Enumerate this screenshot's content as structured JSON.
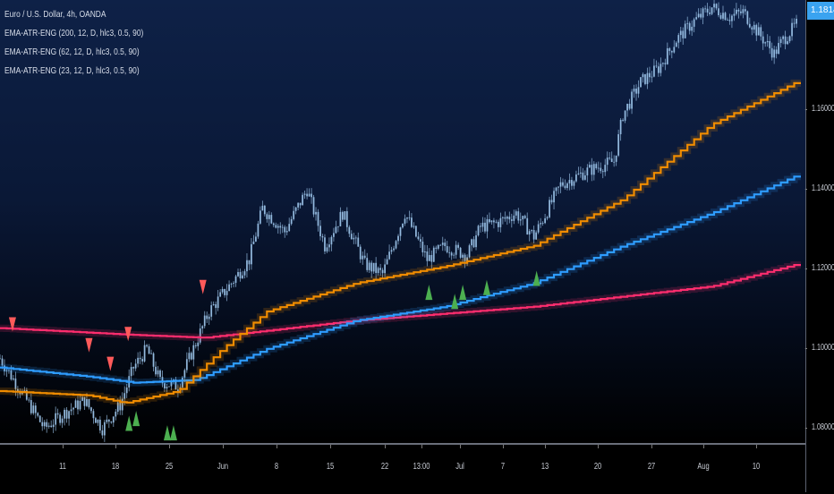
{
  "legend": {
    "symbol": "Euro / U.S. Dollar, 4h, OANDA",
    "indicators": [
      "EMA-ATR-ENG (200, 12, D, hlc3, 0.5, 90)",
      "EMA-ATR-ENG (62, 12, D, hlc3, 0.5, 90)",
      "EMA-ATR-ENG (23, 12, D, hlc3, 0.5, 90)"
    ]
  },
  "colors": {
    "candle": "#9cc4ea",
    "ema200": "#ff2d6e",
    "ema62": "#2e9cff",
    "ema23": "#f08c00",
    "arrow_down": "#ff5a5a",
    "arrow_up": "#4caf50",
    "last_price_bg": "#3aa3f0"
  },
  "chart_data": {
    "type": "line",
    "title": "Euro / U.S. Dollar, 4h, OANDA",
    "ylim": [
      1.064,
      1.1876
    ],
    "xlim": [
      0,
      180
    ],
    "price_ticks": [
      "1.16000",
      "1.14000",
      "1.12000",
      "1.10000",
      "1.08000"
    ],
    "price_tick_values": [
      1.16,
      1.14,
      1.12,
      1.1,
      1.08
    ],
    "last_price": "1.18141",
    "time_ticks": [
      {
        "label": "11",
        "bar": 14
      },
      {
        "label": "18",
        "bar": 26
      },
      {
        "label": "25",
        "bar": 38
      },
      {
        "label": "Jun",
        "bar": 50
      },
      {
        "label": "8",
        "bar": 62.2
      },
      {
        "label": "15",
        "bar": 74.2
      },
      {
        "label": "22",
        "bar": 86.4
      },
      {
        "label": "13:00",
        "bar": 94.8
      },
      {
        "label": "Jul",
        "bar": 103.4
      },
      {
        "label": "7",
        "bar": 113
      },
      {
        "label": "13",
        "bar": 122.4
      },
      {
        "label": "20",
        "bar": 134.4
      },
      {
        "label": "27",
        "bar": 146.4
      },
      {
        "label": "Aug",
        "bar": 158
      },
      {
        "label": "10",
        "bar": 170
      }
    ],
    "price_path": [
      [
        0,
        1.0976
      ],
      [
        4,
        1.0906
      ],
      [
        10,
        1.08
      ],
      [
        14,
        1.0835
      ],
      [
        19,
        1.0871
      ],
      [
        23,
        1.08
      ],
      [
        27,
        1.0859
      ],
      [
        30,
        1.0953
      ],
      [
        33,
        1.1
      ],
      [
        36,
        1.0918
      ],
      [
        40,
        1.0906
      ],
      [
        43,
        1.0988
      ],
      [
        47,
        1.1094
      ],
      [
        52,
        1.1165
      ],
      [
        56,
        1.1224
      ],
      [
        59,
        1.1353
      ],
      [
        64,
        1.1294
      ],
      [
        69,
        1.14
      ],
      [
        73,
        1.1259
      ],
      [
        77,
        1.1341
      ],
      [
        82,
        1.1212
      ],
      [
        86,
        1.1188
      ],
      [
        91,
        1.1341
      ],
      [
        96,
        1.1224
      ],
      [
        100,
        1.1259
      ],
      [
        105,
        1.1235
      ],
      [
        108,
        1.1306
      ],
      [
        112,
        1.1318
      ],
      [
        116,
        1.1341
      ],
      [
        120,
        1.1282
      ],
      [
        126,
        1.1412
      ],
      [
        132,
        1.1447
      ],
      [
        138,
        1.1471
      ],
      [
        140,
        1.1588
      ],
      [
        144,
        1.167
      ],
      [
        148,
        1.1705
      ],
      [
        152,
        1.1776
      ],
      [
        156,
        1.1823
      ],
      [
        160,
        1.1858
      ],
      [
        164,
        1.1834
      ],
      [
        167,
        1.1846
      ],
      [
        170,
        1.18
      ],
      [
        174,
        1.1741
      ],
      [
        176,
        1.1776
      ],
      [
        179,
        1.1814
      ]
    ],
    "series": [
      {
        "name": "EMA-ATR-ENG 200",
        "color_key": "ema200",
        "points": [
          [
            0,
            1.1052
          ],
          [
            30,
            1.1035
          ],
          [
            46,
            1.1028
          ],
          [
            80,
            1.1071
          ],
          [
            120,
            1.1106
          ],
          [
            160,
            1.1157
          ],
          [
            179,
            1.1212
          ]
        ]
      },
      {
        "name": "EMA-ATR-ENG 62",
        "color_key": "ema62",
        "points": [
          [
            0,
            1.0953
          ],
          [
            20,
            1.093
          ],
          [
            30,
            1.0915
          ],
          [
            44,
            1.0922
          ],
          [
            60,
            1.1
          ],
          [
            80,
            1.1071
          ],
          [
            100,
            1.1106
          ],
          [
            120,
            1.1165
          ],
          [
            140,
            1.1259
          ],
          [
            160,
            1.1341
          ],
          [
            179,
            1.1435
          ]
        ]
      },
      {
        "name": "EMA-ATR-ENG 23",
        "color_key": "ema23",
        "points": [
          [
            0,
            1.0894
          ],
          [
            20,
            1.0883
          ],
          [
            28,
            1.0864
          ],
          [
            40,
            1.0894
          ],
          [
            50,
            1.1
          ],
          [
            60,
            1.1094
          ],
          [
            80,
            1.1165
          ],
          [
            100,
            1.1207
          ],
          [
            120,
            1.1259
          ],
          [
            140,
            1.1376
          ],
          [
            160,
            1.1564
          ],
          [
            179,
            1.167
          ]
        ]
      }
    ],
    "signals_down": [
      [
        2.8,
        1.1059
      ],
      [
        20,
        1.1007
      ],
      [
        24.8,
        1.096
      ],
      [
        28.8,
        1.1035
      ],
      [
        45.6,
        1.1153
      ]
    ],
    "signals_up": [
      [
        19.4,
        1.0741
      ],
      [
        29,
        1.0812
      ],
      [
        30.6,
        1.0824
      ],
      [
        37.6,
        1.0788
      ],
      [
        39,
        1.0788
      ],
      [
        96.4,
        1.1141
      ],
      [
        102.2,
        1.1118
      ],
      [
        104,
        1.1141
      ],
      [
        109.4,
        1.1153
      ],
      [
        120.6,
        1.1176
      ]
    ]
  }
}
